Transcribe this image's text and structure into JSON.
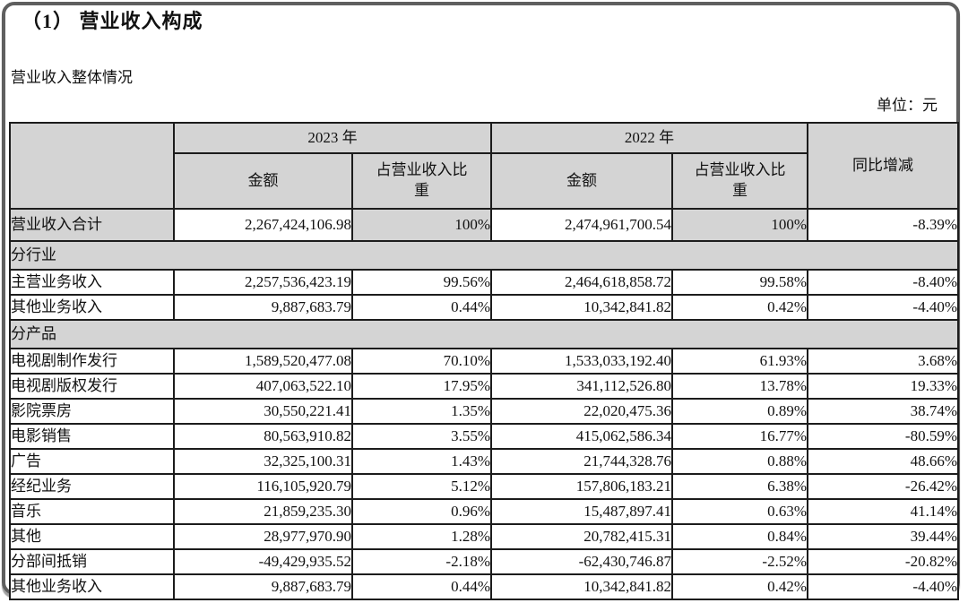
{
  "page": {
    "title": "（1） 营业收入构成",
    "subtitle": "营业收入整体情况",
    "unit_label": "单位：元"
  },
  "colors": {
    "header_bg": "#d4d4d4",
    "table_border": "#1c1c1c",
    "frame_border": "#5f5f5f"
  },
  "table": {
    "columns": {
      "year_2023": "2023 年",
      "year_2022": "2022 年",
      "amount": "金额",
      "ratio": "占营业收入比重",
      "yoy": "同比增减"
    },
    "rows": [
      {
        "type": "data",
        "shaded": true,
        "label": "营业收入合计",
        "a2023": "2,267,424,106.98",
        "r2023": "100%",
        "a2022": "2,474,961,700.54",
        "r2022": "100%",
        "yoy": "-8.39%"
      },
      {
        "type": "section",
        "label": "分行业"
      },
      {
        "type": "data",
        "shaded": false,
        "label": "主营业务收入",
        "a2023": "2,257,536,423.19",
        "r2023": "99.56%",
        "a2022": "2,464,618,858.72",
        "r2022": "99.58%",
        "yoy": "-8.40%"
      },
      {
        "type": "data",
        "shaded": false,
        "label": "其他业务收入",
        "a2023": "9,887,683.79",
        "r2023": "0.44%",
        "a2022": "10,342,841.82",
        "r2022": "0.42%",
        "yoy": "-4.40%"
      },
      {
        "type": "section",
        "label": "分产品"
      },
      {
        "type": "data",
        "shaded": false,
        "label": "电视剧制作发行",
        "a2023": "1,589,520,477.08",
        "r2023": "70.10%",
        "a2022": "1,533,033,192.40",
        "r2022": "61.93%",
        "yoy": "3.68%"
      },
      {
        "type": "data",
        "shaded": false,
        "label": "电视剧版权发行",
        "a2023": "407,063,522.10",
        "r2023": "17.95%",
        "a2022": "341,112,526.80",
        "r2022": "13.78%",
        "yoy": "19.33%"
      },
      {
        "type": "data",
        "shaded": false,
        "label": "影院票房",
        "a2023": "30,550,221.41",
        "r2023": "1.35%",
        "a2022": "22,020,475.36",
        "r2022": "0.89%",
        "yoy": "38.74%"
      },
      {
        "type": "data",
        "shaded": false,
        "label": "电影销售",
        "a2023": "80,563,910.82",
        "r2023": "3.55%",
        "a2022": "415,062,586.34",
        "r2022": "16.77%",
        "yoy": "-80.59%"
      },
      {
        "type": "data",
        "shaded": false,
        "label": "广告",
        "a2023": "32,325,100.31",
        "r2023": "1.43%",
        "a2022": "21,744,328.76",
        "r2022": "0.88%",
        "yoy": "48.66%"
      },
      {
        "type": "data",
        "shaded": false,
        "label": "经纪业务",
        "a2023": "116,105,920.79",
        "r2023": "5.12%",
        "a2022": "157,806,183.21",
        "r2022": "6.38%",
        "yoy": "-26.42%"
      },
      {
        "type": "data",
        "shaded": false,
        "label": "音乐",
        "a2023": "21,859,235.30",
        "r2023": "0.96%",
        "a2022": "15,487,897.41",
        "r2022": "0.63%",
        "yoy": "41.14%"
      },
      {
        "type": "data",
        "shaded": false,
        "label": "其他",
        "a2023": "28,977,970.90",
        "r2023": "1.28%",
        "a2022": "20,782,415.31",
        "r2022": "0.84%",
        "yoy": "39.44%"
      },
      {
        "type": "data",
        "shaded": false,
        "label": "分部间抵销",
        "a2023": "-49,429,935.52",
        "r2023": "-2.18%",
        "a2022": "-62,430,746.87",
        "r2022": "-2.52%",
        "yoy": "-20.82%"
      },
      {
        "type": "data",
        "shaded": false,
        "label": "其他业务收入",
        "a2023": "9,887,683.79",
        "r2023": "0.44%",
        "a2022": "10,342,841.82",
        "r2022": "0.42%",
        "yoy": "-4.40%"
      }
    ]
  }
}
